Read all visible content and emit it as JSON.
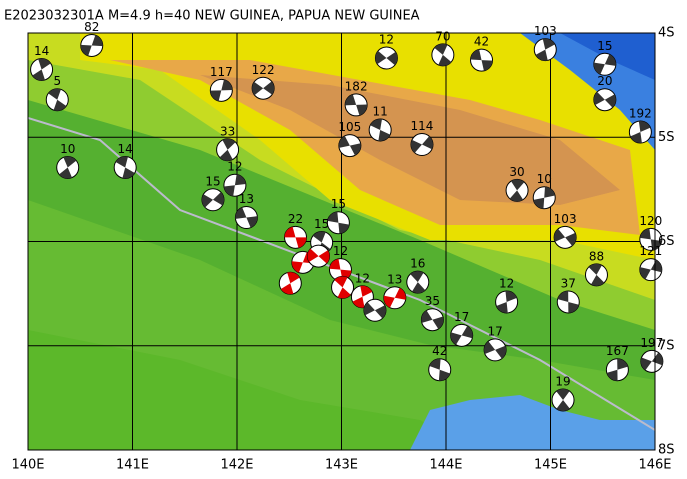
{
  "map": {
    "title": "E2023032301A M=4.9 h=40 NEW GUINEA, PAPUA NEW GUINEA",
    "xlim": [
      140,
      146
    ],
    "ylim": [
      -8,
      -4
    ],
    "xticks": [
      {
        "value": 140,
        "label": "140E"
      },
      {
        "value": 141,
        "label": "141E"
      },
      {
        "value": 142,
        "label": "142E"
      },
      {
        "value": 143,
        "label": "143E"
      },
      {
        "value": 144,
        "label": "144E"
      },
      {
        "value": 145,
        "label": "145E"
      },
      {
        "value": 146,
        "label": "146E"
      }
    ],
    "yticks": [
      {
        "value": -4,
        "label": "4S"
      },
      {
        "value": -5,
        "label": "5S"
      },
      {
        "value": -6,
        "label": "6S"
      },
      {
        "value": -7,
        "label": "7S"
      },
      {
        "value": -8,
        "label": "8S"
      }
    ],
    "grid": true,
    "highlight_color": "#e00000",
    "default_color": "#333333",
    "events": [
      {
        "lon": 142.56,
        "lat": -5.96,
        "depth": 22,
        "highlight": true
      },
      {
        "lon": 142.81,
        "lat": -6.01,
        "depth": 15,
        "highlight": false
      },
      {
        "lon": 142.51,
        "lat": -6.4,
        "depth": null,
        "highlight": true
      },
      {
        "lon": 142.63,
        "lat": -6.2,
        "depth": null,
        "highlight": true
      },
      {
        "lon": 142.78,
        "lat": -6.14,
        "depth": null,
        "highlight": true
      },
      {
        "lon": 142.99,
        "lat": -6.27,
        "depth": 12,
        "highlight": true
      },
      {
        "lon": 143.01,
        "lat": -6.44,
        "depth": null,
        "highlight": true
      },
      {
        "lon": 143.2,
        "lat": -6.53,
        "depth": 12,
        "highlight": true
      },
      {
        "lon": 143.51,
        "lat": -6.54,
        "depth": 13,
        "highlight": true
      },
      {
        "lon": 143.32,
        "lat": -6.66,
        "depth": null,
        "highlight": false
      },
      {
        "lon": 142.97,
        "lat": -5.82,
        "depth": 15,
        "highlight": false
      },
      {
        "lon": 143.73,
        "lat": -6.39,
        "depth": 16,
        "highlight": false
      },
      {
        "lon": 144.58,
        "lat": -6.58,
        "depth": 12,
        "highlight": false
      },
      {
        "lon": 144.15,
        "lat": -6.9,
        "depth": 17,
        "highlight": false
      },
      {
        "lon": 144.47,
        "lat": -7.04,
        "depth": 17,
        "highlight": false
      },
      {
        "lon": 145.17,
        "lat": -6.58,
        "depth": 37,
        "highlight": false
      },
      {
        "lon": 145.12,
        "lat": -7.52,
        "depth": 19,
        "highlight": false
      },
      {
        "lon": 145.64,
        "lat": -7.23,
        "depth": 167,
        "highlight": false
      },
      {
        "lon": 145.97,
        "lat": -7.15,
        "depth": 197,
        "highlight": false
      },
      {
        "lon": 143.87,
        "lat": -6.75,
        "depth": 35,
        "highlight": false
      },
      {
        "lon": 143.94,
        "lat": -7.23,
        "depth": 42,
        "highlight": false
      },
      {
        "lon": 144.68,
        "lat": -5.51,
        "depth": 30,
        "highlight": false
      },
      {
        "lon": 144.94,
        "lat": -5.58,
        "depth": 10,
        "highlight": false
      },
      {
        "lon": 143.77,
        "lat": -5.07,
        "depth": 114,
        "highlight": false
      },
      {
        "lon": 143.08,
        "lat": -5.08,
        "depth": 105,
        "highlight": false
      },
      {
        "lon": 143.37,
        "lat": -4.93,
        "depth": 11,
        "highlight": false
      },
      {
        "lon": 141.91,
        "lat": -5.12,
        "depth": 33,
        "highlight": false
      },
      {
        "lon": 141.98,
        "lat": -5.46,
        "depth": 12,
        "highlight": false
      },
      {
        "lon": 141.77,
        "lat": -5.6,
        "depth": 15,
        "highlight": false
      },
      {
        "lon": 142.09,
        "lat": -5.77,
        "depth": 13,
        "highlight": false
      },
      {
        "lon": 140.93,
        "lat": -5.29,
        "depth": 14,
        "highlight": false
      },
      {
        "lon": 140.38,
        "lat": -5.29,
        "depth": 10,
        "highlight": false
      },
      {
        "lon": 141.85,
        "lat": -4.55,
        "depth": 117,
        "highlight": false
      },
      {
        "lon": 142.25,
        "lat": -4.53,
        "depth": 122,
        "highlight": false
      },
      {
        "lon": 143.14,
        "lat": -4.69,
        "depth": 182,
        "highlight": false
      },
      {
        "lon": 140.28,
        "lat": -4.64,
        "depth": 5,
        "highlight": false
      },
      {
        "lon": 140.13,
        "lat": -4.35,
        "depth": 14,
        "highlight": false
      },
      {
        "lon": 140.61,
        "lat": -4.12,
        "depth": 82,
        "highlight": false
      },
      {
        "lon": 143.43,
        "lat": -4.24,
        "depth": 12,
        "highlight": false
      },
      {
        "lon": 144.34,
        "lat": -4.26,
        "depth": 42,
        "highlight": false
      },
      {
        "lon": 143.97,
        "lat": -4.21,
        "depth": 70,
        "highlight": false
      },
      {
        "lon": 144.95,
        "lat": -4.16,
        "depth": 103,
        "highlight": false
      },
      {
        "lon": 145.52,
        "lat": -4.3,
        "depth": 15,
        "highlight": false
      },
      {
        "lon": 145.52,
        "lat": -4.64,
        "depth": 20,
        "highlight": false
      },
      {
        "lon": 145.96,
        "lat": -5.98,
        "depth": 120,
        "highlight": false
      },
      {
        "lon": 145.44,
        "lat": -6.32,
        "depth": 88,
        "highlight": false
      },
      {
        "lon": 145.86,
        "lat": -4.95,
        "depth": 192,
        "highlight": false
      },
      {
        "lon": 145.96,
        "lat": -6.27,
        "depth": 121,
        "highlight": false
      },
      {
        "lon": 145.14,
        "lat": -5.96,
        "depth": 103,
        "highlight": false
      }
    ]
  }
}
